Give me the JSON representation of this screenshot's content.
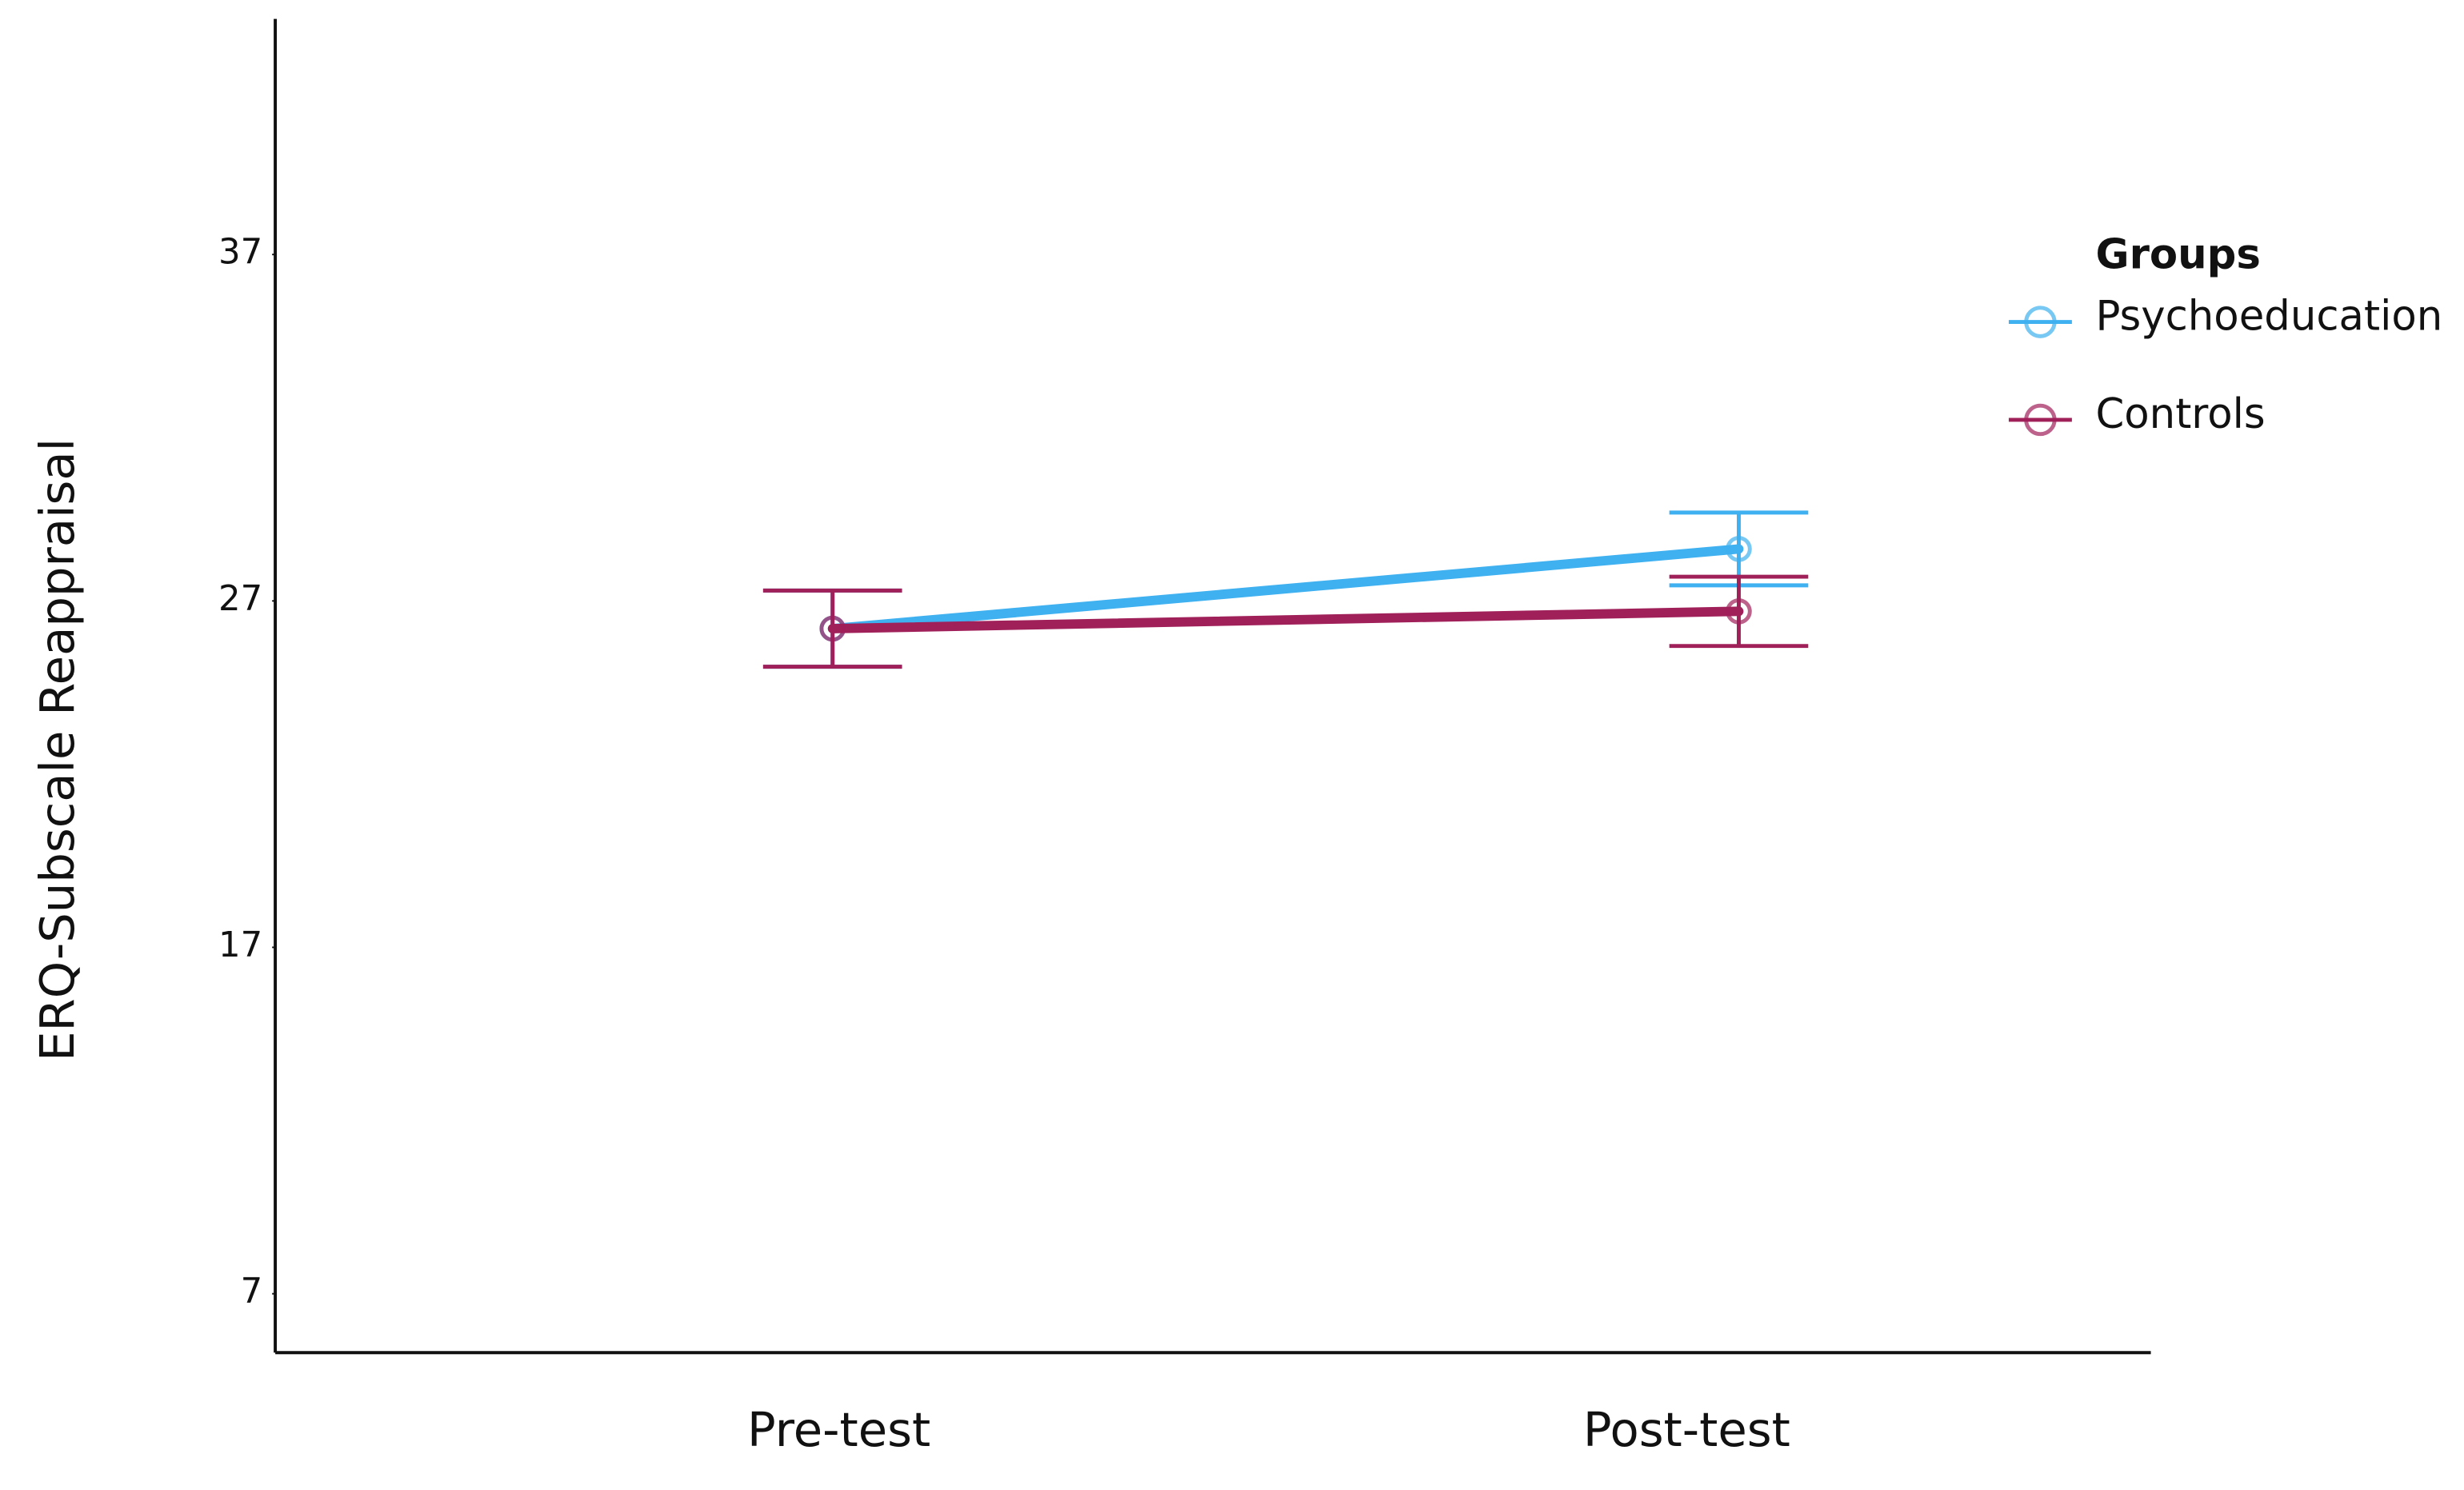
{
  "chart_data": {
    "type": "line",
    "y_label": "ERQ-Subscale Reappraisal",
    "categories": [
      "Pre-test",
      "Post-test"
    ],
    "series": [
      {
        "name": "Psychoeducation",
        "color": "#3fb0f0",
        "values": [
          26.2,
          28.5
        ],
        "errors": [
          1.1,
          1.05
        ]
      },
      {
        "name": "Controls",
        "color": "#a0205a",
        "values": [
          26.2,
          26.7
        ],
        "errors": [
          1.1,
          1.0
        ]
      }
    ],
    "ylim": [
      5.3,
      43.8
    ],
    "yticks": [
      7,
      17,
      27,
      37
    ],
    "legend_title": "Groups",
    "legend_position": "right"
  }
}
